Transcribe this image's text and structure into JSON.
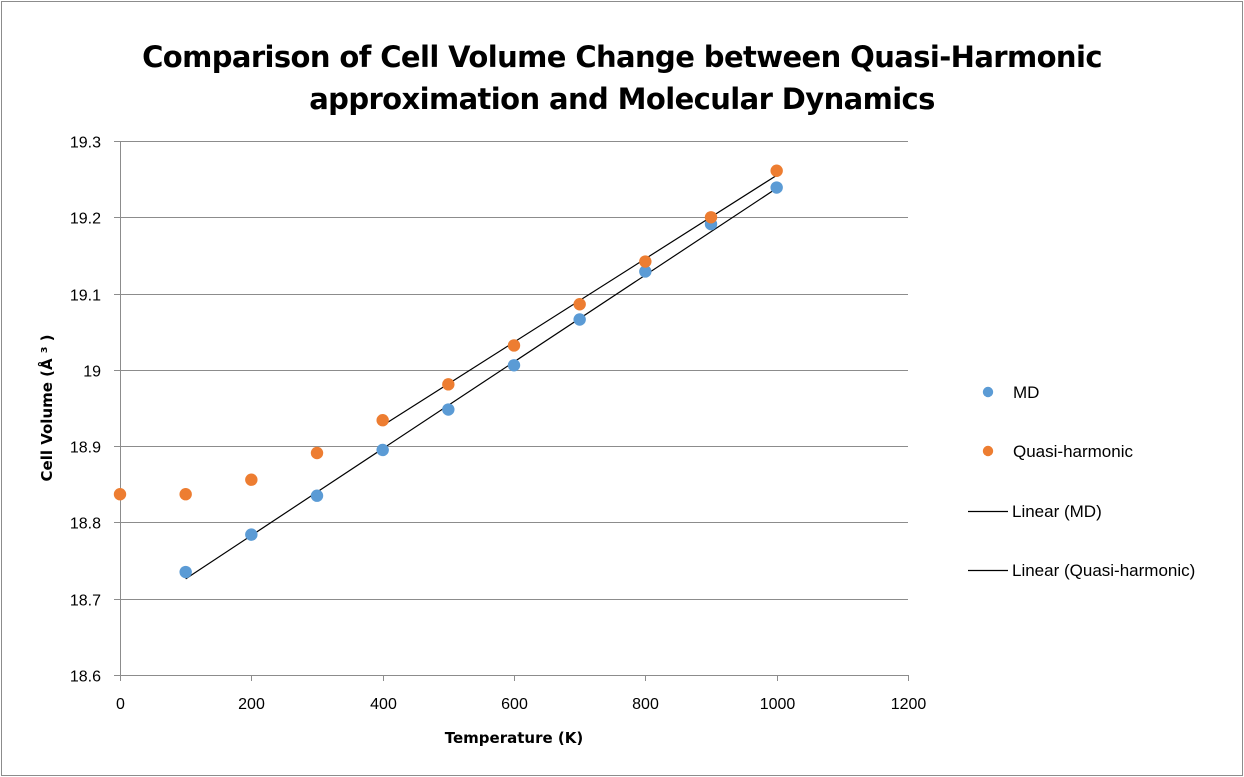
{
  "chart_data": {
    "type": "scatter",
    "title_lines": [
      "Comparison of Cell Volume Change between Quasi-Harmonic",
      "approximation and Molecular Dynamics"
    ],
    "xlabel": "Temperature (K)",
    "ylabel": "Cell Volume (Å ³ )",
    "xlim": [
      0,
      1200
    ],
    "ylim": [
      18.6,
      19.3
    ],
    "xticks": [
      "0",
      "200",
      "400",
      "600",
      "800",
      "1000",
      "1200"
    ],
    "xtick_values": [
      0,
      200,
      400,
      600,
      800,
      1000,
      1200
    ],
    "yticks": [
      "18.6",
      "18.7",
      "18.8",
      "18.9",
      "19",
      "19.1",
      "19.2",
      "19.3"
    ],
    "ytick_values": [
      18.6,
      18.7,
      18.8,
      18.9,
      19.0,
      19.1,
      19.2,
      19.3
    ],
    "grid": "horizontal",
    "legend_position": "right",
    "series": [
      {
        "name": "MD",
        "kind": "marker",
        "color": "#5B9BD5",
        "x": [
          100,
          200,
          300,
          400,
          500,
          600,
          700,
          800,
          900,
          1000
        ],
        "y": [
          18.735,
          18.784,
          18.835,
          18.895,
          18.948,
          19.006,
          19.066,
          19.129,
          19.191,
          19.239
        ]
      },
      {
        "name": "Quasi-harmonic",
        "kind": "marker",
        "color": "#ED7D31",
        "x": [
          0,
          100,
          200,
          300,
          400,
          500,
          600,
          700,
          800,
          900,
          1000
        ],
        "y": [
          18.837,
          18.837,
          18.856,
          18.891,
          18.934,
          18.981,
          19.032,
          19.086,
          19.142,
          19.2,
          19.261
        ]
      },
      {
        "name": "Linear (MD)",
        "kind": "trendline",
        "color": "#000000",
        "x": [
          100,
          1000
        ],
        "y": [
          18.726,
          19.238
        ]
      },
      {
        "name": "Linear (Quasi-harmonic)",
        "kind": "trendline",
        "color": "#000000",
        "x": [
          400,
          1000
        ],
        "y": [
          18.927,
          19.255
        ]
      }
    ]
  }
}
